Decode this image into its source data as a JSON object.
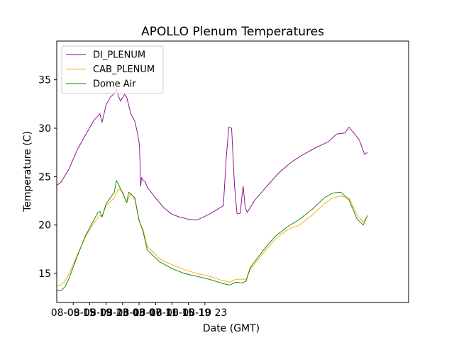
{
  "chart_data": {
    "type": "line",
    "title": "APOLLO Plenum Temperatures",
    "xlabel": "Date (GMT)",
    "ylabel": "Temperature (C)",
    "xlim": [
      0,
      85.5
    ],
    "ylim": [
      12,
      39
    ],
    "x_unit": "hours since 08-09 11:00 GMT",
    "xticks": [
      {
        "x": 4,
        "label": "08-09 15"
      },
      {
        "x": 8,
        "label": "08-09 19"
      },
      {
        "x": 12,
        "label": "08-09 23"
      },
      {
        "x": 16,
        "label": "08-10 03"
      },
      {
        "x": 20,
        "label": "08-10 07"
      },
      {
        "x": 24,
        "label": "08-10 11"
      },
      {
        "x": 28,
        "label": "08-10 15"
      },
      {
        "x": 32,
        "label": "08-10 19"
      },
      {
        "x": 36,
        "label": "08-10 23"
      }
    ],
    "yticks": [
      15,
      20,
      25,
      30,
      35
    ],
    "legend_position": "top-left",
    "series": [
      {
        "name": "DI_PLENUM",
        "color": "#800080",
        "points": [
          [
            0,
            24.1
          ],
          [
            1,
            24.4
          ],
          [
            3,
            25.8
          ],
          [
            5,
            27.8
          ],
          [
            7,
            29.3
          ],
          [
            9,
            30.8
          ],
          [
            10.5,
            31.5
          ],
          [
            11,
            30.6
          ],
          [
            12,
            32.4
          ],
          [
            13,
            33.2
          ],
          [
            14,
            33.6
          ],
          [
            14.5,
            34.1
          ],
          [
            15,
            33.3
          ],
          [
            15.5,
            32.8
          ],
          [
            16.5,
            33.5
          ],
          [
            17,
            33.2
          ],
          [
            18,
            31.5
          ],
          [
            19,
            30.7
          ],
          [
            19.6,
            29.5
          ],
          [
            20.1,
            28.3
          ],
          [
            20.2,
            26.8
          ],
          [
            20.4,
            24.0
          ],
          [
            20.6,
            24.9
          ],
          [
            21,
            24.6
          ],
          [
            21.5,
            24.5
          ],
          [
            22,
            23.9
          ],
          [
            24,
            22.8
          ],
          [
            26,
            21.8
          ],
          [
            28,
            21.1
          ],
          [
            30,
            20.8
          ],
          [
            32,
            20.6
          ],
          [
            34,
            20.5
          ],
          [
            35,
            20.7
          ],
          [
            37,
            21.1
          ],
          [
            39,
            21.6
          ],
          [
            40.5,
            22.0
          ],
          [
            41.2,
            27.0
          ],
          [
            41.8,
            30.1
          ],
          [
            42.5,
            30.0
          ],
          [
            43.2,
            24.0
          ],
          [
            43.8,
            21.2
          ],
          [
            44.6,
            21.2
          ],
          [
            45,
            23.0
          ],
          [
            45.3,
            24.0
          ],
          [
            45.8,
            21.8
          ],
          [
            46.3,
            21.3
          ],
          [
            48,
            22.5
          ],
          [
            51,
            24.0
          ],
          [
            54,
            25.4
          ],
          [
            57,
            26.5
          ],
          [
            60,
            27.3
          ],
          [
            63,
            28.0
          ],
          [
            66,
            28.6
          ],
          [
            68,
            29.4
          ],
          [
            70,
            29.5
          ],
          [
            71,
            30.1
          ],
          [
            72,
            29.6
          ],
          [
            73.5,
            28.8
          ],
          [
            74.8,
            27.3
          ],
          [
            75.5,
            27.5
          ]
        ]
      },
      {
        "name": "CAB_PLENUM",
        "color": "#ffa500",
        "points": [
          [
            0,
            13.7
          ],
          [
            1,
            13.8
          ],
          [
            2,
            14.2
          ],
          [
            3,
            15.0
          ],
          [
            5,
            16.9
          ],
          [
            7,
            18.8
          ],
          [
            9,
            20.2
          ],
          [
            10.5,
            21.0
          ],
          [
            11,
            20.9
          ],
          [
            12,
            22.0
          ],
          [
            14,
            22.8
          ],
          [
            15,
            23.8
          ],
          [
            16,
            23.4
          ],
          [
            17,
            22.3
          ],
          [
            18,
            23.3
          ],
          [
            19,
            22.6
          ],
          [
            20,
            20.4
          ],
          [
            21,
            19.5
          ],
          [
            22,
            17.8
          ],
          [
            25,
            16.5
          ],
          [
            28,
            15.9
          ],
          [
            31,
            15.4
          ],
          [
            34,
            15.0
          ],
          [
            37,
            14.7
          ],
          [
            40,
            14.3
          ],
          [
            42,
            14.1
          ],
          [
            43.5,
            14.4
          ],
          [
            46,
            14.4
          ],
          [
            47,
            15.4
          ],
          [
            50,
            17.0
          ],
          [
            53,
            18.5
          ],
          [
            56,
            19.5
          ],
          [
            59,
            20.0
          ],
          [
            62,
            21.0
          ],
          [
            65,
            22.2
          ],
          [
            67,
            22.8
          ],
          [
            69,
            23.0
          ],
          [
            71,
            22.8
          ],
          [
            73,
            21.0
          ],
          [
            74.5,
            20.3
          ],
          [
            75.5,
            20.9
          ]
        ]
      },
      {
        "name": "Dome Air",
        "color": "#008000",
        "points": [
          [
            0,
            13.2
          ],
          [
            1,
            13.2
          ],
          [
            2,
            13.6
          ],
          [
            3,
            14.5
          ],
          [
            5,
            16.8
          ],
          [
            7,
            18.9
          ],
          [
            9,
            20.5
          ],
          [
            10,
            21.3
          ],
          [
            10.5,
            21.4
          ],
          [
            11,
            20.8
          ],
          [
            12,
            22.2
          ],
          [
            14,
            23.4
          ],
          [
            14.5,
            24.6
          ],
          [
            15,
            24.2
          ],
          [
            16,
            23.3
          ],
          [
            17,
            22.3
          ],
          [
            17.5,
            23.4
          ],
          [
            19,
            22.8
          ],
          [
            20,
            20.5
          ],
          [
            21,
            19.3
          ],
          [
            22,
            17.4
          ],
          [
            25,
            16.2
          ],
          [
            28,
            15.5
          ],
          [
            31,
            15.0
          ],
          [
            34,
            14.7
          ],
          [
            37,
            14.4
          ],
          [
            40,
            14.0
          ],
          [
            42,
            13.8
          ],
          [
            43.5,
            14.1
          ],
          [
            45,
            14.0
          ],
          [
            46,
            14.2
          ],
          [
            47,
            15.6
          ],
          [
            50,
            17.3
          ],
          [
            53,
            18.8
          ],
          [
            56,
            19.8
          ],
          [
            59,
            20.6
          ],
          [
            62,
            21.6
          ],
          [
            65,
            22.8
          ],
          [
            67,
            23.3
          ],
          [
            69,
            23.4
          ],
          [
            71,
            22.6
          ],
          [
            73,
            20.6
          ],
          [
            74.5,
            20.0
          ],
          [
            75.5,
            21.0
          ]
        ]
      }
    ]
  }
}
